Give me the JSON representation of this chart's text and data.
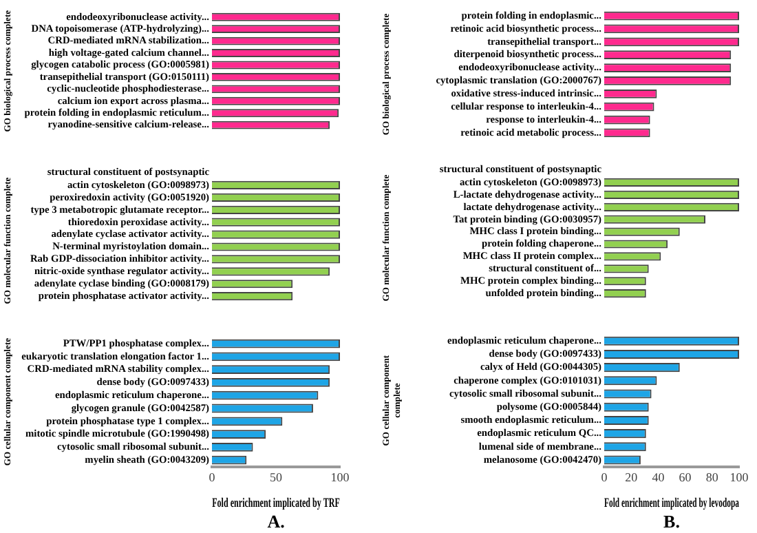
{
  "chart_data": [
    {
      "type": "bar",
      "orientation": "horizontal",
      "ylabel": "GO biological process complete",
      "color": "#ff2a8e",
      "xlim": [
        0,
        100
      ],
      "tick_labels": "y",
      "grid": false,
      "legend": false,
      "categories": [
        "endodeoxyribonuclease activity...",
        "DNA topoisomerase (ATP-hydrolyzing)...",
        "CRD-mediated mRNA stabilization...",
        "high voltage-gated calcium channel...",
        "glycogen catabolic process (GO:0005981)",
        "transepithelial transport (GO:0150111)",
        "cyclic-nucleotide phosphodiesterase...",
        "calcium ion export across plasma...",
        "protein folding in endoplasmic reticulum...",
        "ryanodine-sensitive calcium-release..."
      ],
      "values": [
        100,
        100,
        100,
        100,
        100,
        100,
        100,
        100,
        99,
        92
      ]
    },
    {
      "type": "bar",
      "orientation": "horizontal",
      "ylabel": "GO molecular function complete",
      "color": "#92d050",
      "xlim": [
        0,
        100
      ],
      "tick_labels": "y",
      "grid": false,
      "legend": false,
      "categories": [
        "structural constituent of postsynaptic\nactin cytoskeleton (GO:0098973)",
        "peroxiredoxin activity (GO:0051920)",
        "type 3 metabotropic glutamate receptor...",
        "thioredoxin peroxidase activity...",
        "adenylate cyclase activator activity...",
        "N-terminal myristoylation domain...",
        "Rab GDP-dissociation inhibitor activity...",
        "nitric-oxide synthase regulator activity...",
        "adenylate cyclase binding (GO:0008179)",
        "protein phosphatase activator activity..."
      ],
      "values": [
        100,
        100,
        100,
        100,
        100,
        100,
        100,
        92,
        63,
        63
      ]
    },
    {
      "type": "bar",
      "orientation": "horizontal",
      "ylabel": "GO cellular component complete",
      "xlabel": "Fold enrichment implicated by TRF",
      "annotations": [
        "A."
      ],
      "color": "#1ea5e6",
      "xlim": [
        0,
        100
      ],
      "xticks": [
        0,
        50,
        100
      ],
      "grid": false,
      "legend": false,
      "categories": [
        "PTW/PP1 phosphatase complex...",
        "eukaryotic translation elongation factor 1...",
        "CRD-mediated mRNA stability complex...",
        "dense body (GO:0097433)",
        "endoplasmic reticulum chaperone...",
        "glycogen granule (GO:0042587)",
        "protein phosphatase type 1 complex...",
        "mitotic spindle microtubule (GO:1990498)",
        "cytosolic small ribosomal subunit...",
        "myelin sheath (GO:0043209)"
      ],
      "values": [
        100,
        100,
        92,
        92,
        83,
        79,
        55,
        42,
        32,
        27
      ]
    },
    {
      "type": "bar",
      "orientation": "horizontal",
      "ylabel": "GO biological process complete",
      "color": "#ff2a8e",
      "xlim": [
        0,
        100
      ],
      "tick_labels": "y",
      "grid": false,
      "legend": false,
      "categories": [
        "protein folding in endoplasmic...",
        "retinoic acid biosynthetic process...",
        "transepithelial transport...",
        "diterpenoid biosynthetic process...",
        "endodeoxyribonuclease activity...",
        "cytoplasmic translation (GO:2000767)",
        "oxidative stress-induced intrinsic...",
        "cellular response to interleukin-4...",
        "response to interleukin-4...",
        "retinoic acid metabolic process..."
      ],
      "values": [
        100,
        100,
        100,
        94,
        94,
        94,
        39,
        37,
        34,
        34
      ]
    },
    {
      "type": "bar",
      "orientation": "horizontal",
      "ylabel": "GO molecular function complete",
      "color": "#92d050",
      "xlim": [
        0,
        100
      ],
      "tick_labels": "y",
      "grid": false,
      "legend": false,
      "categories": [
        "structural constituent of postsynaptic\nactin cytoskeleton (GO:0098973)",
        "L-lactate dehydrogenase activity...",
        "lactate dehydrogenase activity...",
        "Tat protein binding (GO:0030957)",
        "MHC class I protein binding...",
        "protein folding chaperone...",
        "MHC class II protein complex...",
        "structural constituent of...",
        "MHC protein complex binding...",
        "unfolded protein binding..."
      ],
      "values": [
        100,
        100,
        100,
        75,
        56,
        47,
        42,
        33,
        31,
        31
      ]
    },
    {
      "type": "bar",
      "orientation": "horizontal",
      "ylabel": "GO cellular component\ncomplete",
      "xlabel": "Fold enrichment implicated by levodopa",
      "annotations": [
        "B."
      ],
      "color": "#1ea5e6",
      "xlim": [
        0,
        100
      ],
      "xticks": [
        0,
        20,
        40,
        60,
        80,
        100
      ],
      "grid": false,
      "legend": false,
      "categories": [
        "endoplasmic reticulum chaperone...",
        "dense body (GO:0097433)",
        "calyx of Held (GO:0044305)",
        "chaperone complex (GO:0101031)",
        "cytosolic small ribosomal subunit...",
        "polysome (GO:0005844)",
        "smooth endoplasmic reticulum...",
        "endoplasmic reticulum QC...",
        "lumenal side of membrane...",
        "melanosome (GO:0042470)"
      ],
      "values": [
        100,
        100,
        56,
        39,
        35,
        33,
        33,
        31,
        31,
        27
      ]
    }
  ]
}
